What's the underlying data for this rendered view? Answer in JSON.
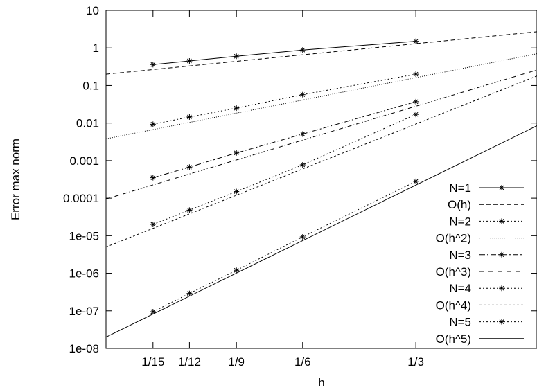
{
  "chart_data": {
    "type": "line",
    "xlabel": "h",
    "ylabel": "Error max norm",
    "x_scale": "log",
    "y_scale": "log",
    "xlim": [
      0.05,
      0.7
    ],
    "ylim": [
      1e-08,
      10
    ],
    "x_ticks": [
      {
        "value": 0.0666667,
        "label": "1/15"
      },
      {
        "value": 0.0833333,
        "label": "1/12"
      },
      {
        "value": 0.1111111,
        "label": "1/9"
      },
      {
        "value": 0.1666667,
        "label": "1/6"
      },
      {
        "value": 0.3333333,
        "label": "1/3"
      }
    ],
    "y_ticks": [
      {
        "value": 1e-08,
        "label": "1e-08"
      },
      {
        "value": 1e-07,
        "label": "1e-07"
      },
      {
        "value": 1e-06,
        "label": "1e-06"
      },
      {
        "value": 1e-05,
        "label": "1e-05"
      },
      {
        "value": 0.0001,
        "label": "0.0001"
      },
      {
        "value": 0.001,
        "label": "0.001"
      },
      {
        "value": 0.01,
        "label": "0.01"
      },
      {
        "value": 0.1,
        "label": "0.1"
      },
      {
        "value": 1,
        "label": "1"
      },
      {
        "value": 10,
        "label": "10"
      }
    ],
    "legend_position": "bottom-right",
    "series": [
      {
        "name": "N=1",
        "kind": "data",
        "dash": "solid",
        "x": [
          0.0666667,
          0.0833333,
          0.1111111,
          0.1666667,
          0.3333333
        ],
        "y": [
          0.36,
          0.45,
          0.6,
          0.88,
          1.5
        ]
      },
      {
        "name": "O(h)",
        "kind": "reference",
        "dash": "dashed",
        "order": 1,
        "x": [
          0.05,
          0.7
        ],
        "y": [
          0.2,
          2.7
        ]
      },
      {
        "name": "N=2",
        "kind": "data",
        "dash": "dotted",
        "x": [
          0.0666667,
          0.0833333,
          0.1111111,
          0.1666667,
          0.3333333
        ],
        "y": [
          0.0093,
          0.0145,
          0.025,
          0.057,
          0.2
        ]
      },
      {
        "name": "O(h^2)",
        "kind": "reference",
        "dash": "dotted-fine",
        "order": 2,
        "x": [
          0.05,
          0.7
        ],
        "y": [
          0.0038,
          0.7
        ]
      },
      {
        "name": "N=3",
        "kind": "data",
        "dash": "dashdot",
        "x": [
          0.0666667,
          0.0833333,
          0.1111111,
          0.1666667,
          0.3333333
        ],
        "y": [
          0.00035,
          0.00067,
          0.0016,
          0.0051,
          0.037
        ]
      },
      {
        "name": "O(h^3)",
        "kind": "reference",
        "dash": "dashdot-fine",
        "order": 3,
        "x": [
          0.05,
          0.7
        ],
        "y": [
          9.5e-05,
          0.26
        ]
      },
      {
        "name": "N=4",
        "kind": "data",
        "dash": "dotted",
        "x": [
          0.0666667,
          0.0833333,
          0.1111111,
          0.1666667,
          0.3333333
        ],
        "y": [
          2e-05,
          4.8e-05,
          0.00015,
          0.00077,
          0.017
        ]
      },
      {
        "name": "O(h^4)",
        "kind": "reference",
        "dash": "short-dash",
        "order": 4,
        "x": [
          0.05,
          0.7
        ],
        "y": [
          5e-06,
          0.18
        ]
      },
      {
        "name": "N=5",
        "kind": "data",
        "dash": "dotted",
        "x": [
          0.0666667,
          0.0833333,
          0.1111111,
          0.1666667,
          0.3333333
        ],
        "y": [
          9.5e-08,
          2.9e-07,
          1.2e-06,
          9.3e-06,
          0.00028
        ]
      },
      {
        "name": "O(h^5)",
        "kind": "reference",
        "dash": "solid",
        "order": 5,
        "x": [
          0.05,
          0.7
        ],
        "y": [
          2e-08,
          0.0085
        ]
      }
    ]
  }
}
